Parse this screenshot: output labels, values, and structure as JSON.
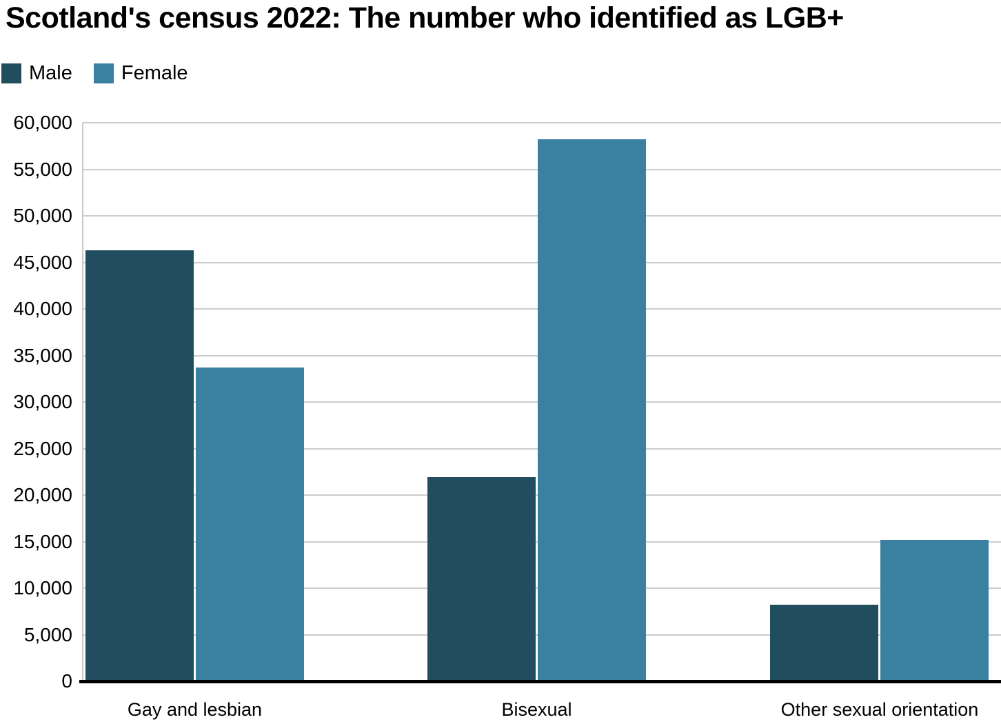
{
  "page": {
    "background": "#ffffff",
    "text_color": "#000000",
    "grid_color": "#cccccc",
    "axis_line_color": "#c8c8c8",
    "baseline_color": "#000000"
  },
  "chart_data": {
    "type": "bar",
    "title": "Scotland's census 2022: The number who identified as LGB+",
    "xlabel": "",
    "ylabel": "",
    "categories": [
      "Gay and lesbian",
      "Bisexual",
      "Other sexual orientation"
    ],
    "series": [
      {
        "name": "Male",
        "color": "#224d5e",
        "values": [
          46300,
          21900,
          8200
        ]
      },
      {
        "name": "Female",
        "color": "#3a80a0",
        "values": [
          33700,
          58200,
          15200
        ]
      }
    ],
    "ylim": [
      0,
      60000
    ],
    "ytick_step": 5000,
    "ytick_labels": [
      "0",
      "5,000",
      "10,000",
      "15,000",
      "20,000",
      "25,000",
      "30,000",
      "35,000",
      "40,000",
      "45,000",
      "50,000",
      "55,000",
      "60,000"
    ],
    "grid": "horizontal",
    "legend_position": "top-left"
  }
}
